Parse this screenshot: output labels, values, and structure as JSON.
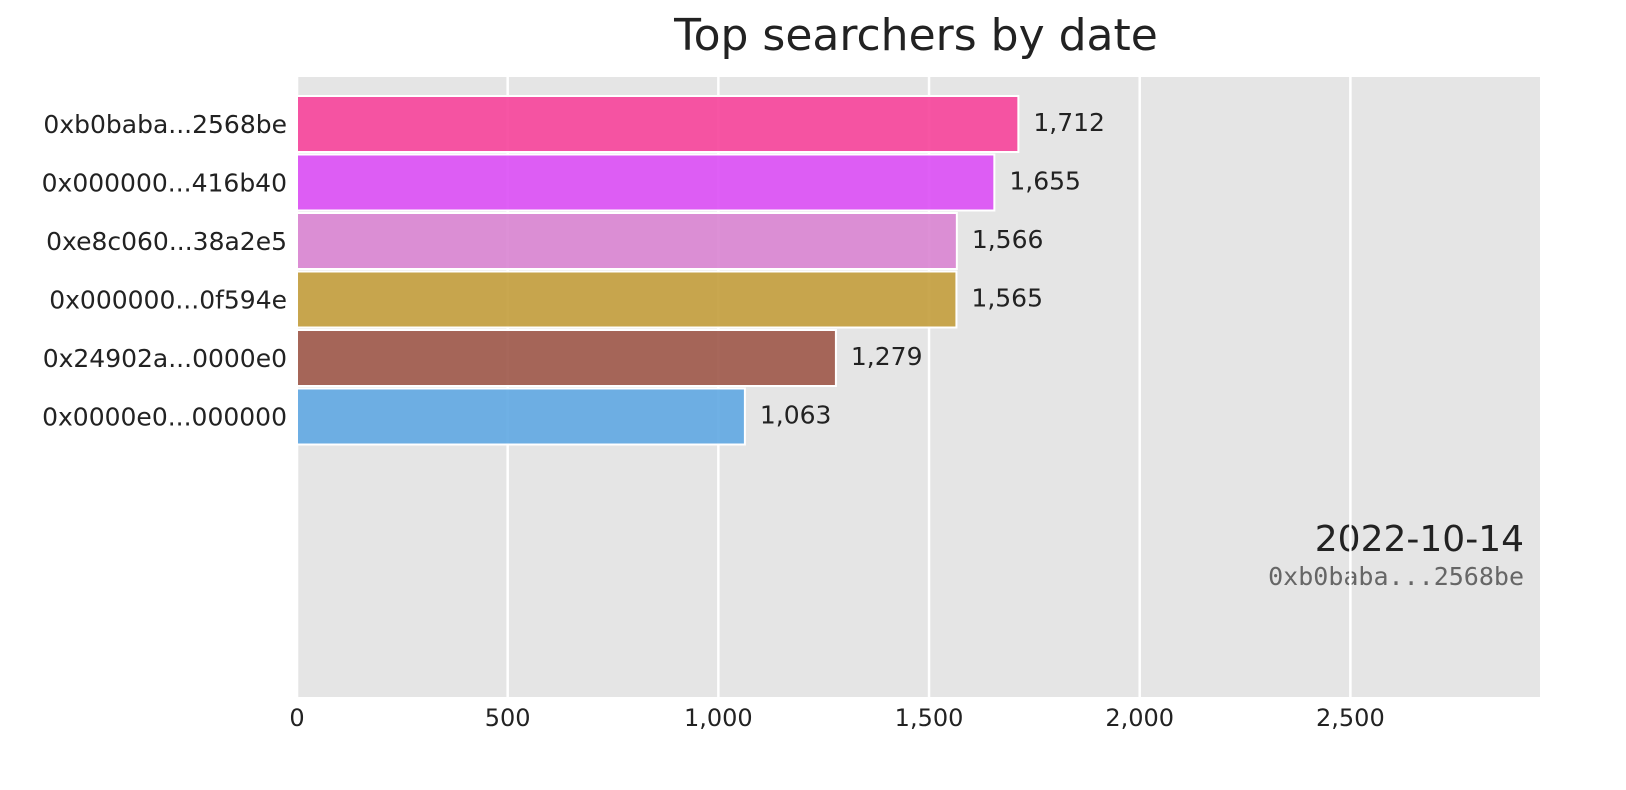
{
  "chart_data": {
    "type": "barh",
    "title": "Top searchers by date",
    "categories": [
      "0xb0baba...2568be",
      "0x000000...416b40",
      "0xe8c060...38a2e5",
      "0x000000...0f594e",
      "0x24902a...0000e0",
      "0x0000e0...000000"
    ],
    "values": [
      1712,
      1655,
      1566,
      1565,
      1279,
      1063
    ],
    "value_labels": [
      "1,712",
      "1,655",
      "1,566",
      "1,565",
      "1,279",
      "1,063"
    ],
    "colors": [
      "#f6479c",
      "#dc51f5",
      "#da87d3",
      "#c4a040",
      "#a05a4c",
      "#63a9e3"
    ],
    "xlim": [
      0,
      2950
    ],
    "xticks": [
      0,
      500,
      {
        "value": 1000,
        "label": "1,000"
      },
      {
        "value": 1500,
        "label": "1,500"
      },
      {
        "value": 2000,
        "label": "2,000"
      },
      {
        "value": 2500,
        "label": "2,500"
      }
    ],
    "grid": true,
    "annotations": [
      "2022-10-14",
      "0xb0baba...2568be"
    ]
  }
}
